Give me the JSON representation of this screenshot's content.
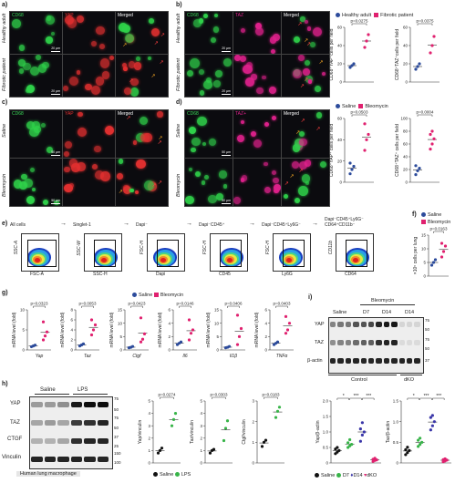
{
  "panels": {
    "a": {
      "label": "a)",
      "rows": [
        "Healthy adult",
        "Fibrotic patient"
      ],
      "cols": [
        "CD68",
        "YAP",
        "Merged"
      ],
      "scalebar": "20 µm"
    },
    "b": {
      "label": "b)",
      "rows": [
        "Healthy adult",
        "Fibrotic patient"
      ],
      "cols": [
        "CD68",
        "TAZ",
        "Merged"
      ],
      "scalebar": "20 µm"
    },
    "c": {
      "label": "c)",
      "rows": [
        "Saline",
        "Bleomycin"
      ],
      "cols": [
        "CD68",
        "YAP",
        "Merged"
      ],
      "scalebar": "50 µm"
    },
    "d": {
      "label": "d)",
      "rows": [
        "Saline",
        "Bleomycin"
      ],
      "cols": [
        "CD68",
        "TAZ+",
        "Merged"
      ],
      "scalebar": "50 µm"
    },
    "e": {
      "label": "e)",
      "gates": [
        {
          "title": "All cells",
          "x": "FSC-A",
          "y": "SSC-A"
        },
        {
          "title": "Singlet-1",
          "x": "SSC-H",
          "y": "SSC-W"
        },
        {
          "title": "Dapi⁻",
          "x": "Dapi",
          "y": "FSC-H"
        },
        {
          "title": "Dapi⁻CD45⁺",
          "x": "CD45",
          "y": "FSC-H"
        },
        {
          "title": "Dapi⁻CD45⁺Ly6G⁻",
          "x": "Ly6G",
          "y": "FSC-H"
        },
        {
          "title": "Dapi⁻CD45⁺Ly6G⁻ CD64⁺CD11b⁻",
          "x": "CD64",
          "y": "CD11b"
        }
      ]
    },
    "f": {
      "label": "f)"
    },
    "g": {
      "label": "g)"
    },
    "h": {
      "label": "h)",
      "blot": {
        "headers": [
          "Saline",
          "LPS"
        ],
        "rows": [
          "YAP",
          "TAZ",
          "CTGF",
          "Vinculin"
        ],
        "mw": [
          "75",
          "50",
          "75",
          "50",
          "37",
          "25",
          "150",
          "100"
        ],
        "footer": "Human lung macrophage"
      }
    },
    "i": {
      "label": "i)",
      "blot": {
        "top": "Bleomycin",
        "cols": [
          "Saline",
          "D7",
          "D14",
          "D14"
        ],
        "rows": [
          "YAP",
          "TAZ",
          "β-actin"
        ],
        "mw": [
          "75",
          "50",
          "75",
          "50",
          "37"
        ],
        "groups": [
          "Control",
          "dKO"
        ]
      }
    }
  },
  "legends": {
    "ab": {
      "healthy": "Healthy adult",
      "fibrotic": "Fibrotic patient"
    },
    "cd": {
      "saline": "Saline",
      "bleo": "Bleomycin"
    },
    "f": {
      "saline": "Saline",
      "bleo": "Bleomycin"
    },
    "g": {
      "saline": "Saline",
      "bleo": "Bleomycin"
    },
    "h": {
      "saline": "Saline",
      "lps": "LPS"
    },
    "i": {
      "saline": "Saline",
      "d7": "D7",
      "d14": "D14",
      "dko": "dKO"
    }
  },
  "colors": {
    "healthy": "#2c4b9b",
    "fibrotic": "#e0216f",
    "saline": "#2c4b9b",
    "bleo": "#e0216f",
    "lps": "#38b449",
    "d7": "#38b449",
    "d14": "#3a36a8",
    "dko": "#e0216f",
    "black": "#111111"
  },
  "chart_data": [
    {
      "id": "ab1",
      "type": "scatter",
      "ylabel": "CD68⁺YAP⁺cells per field",
      "pvalue": "p=0.0275",
      "ylim": [
        0,
        60
      ],
      "yticks": [
        "0",
        "20",
        "40",
        "60"
      ],
      "series": [
        {
          "name": "Healthy adult",
          "values": [
            16,
            18,
            20
          ]
        },
        {
          "name": "Fibrotic patient",
          "values": [
            38,
            45,
            52
          ]
        }
      ]
    },
    {
      "id": "ab2",
      "type": "scatter",
      "ylabel": "CD68⁺TAZ⁺cells per field",
      "pvalue": "p=0.0375",
      "ylim": [
        0,
        60
      ],
      "yticks": [
        "0",
        "20",
        "40",
        "60"
      ],
      "series": [
        {
          "name": "Healthy adult",
          "values": [
            14,
            17,
            20
          ]
        },
        {
          "name": "Fibrotic patient",
          "values": [
            32,
            40,
            50
          ]
        }
      ]
    },
    {
      "id": "cd1",
      "type": "scatter",
      "ylabel": "CD68⁺YAP⁺ cells per field",
      "pvalue": "p=0.0503",
      "ylim": [
        0,
        60
      ],
      "yticks": [
        "0",
        "20",
        "40",
        "60"
      ],
      "series": [
        {
          "name": "Saline",
          "values": [
            8,
            12,
            15,
            18
          ]
        },
        {
          "name": "Bleomycin",
          "values": [
            30,
            40,
            45,
            55
          ]
        }
      ]
    },
    {
      "id": "cd2",
      "type": "scatter",
      "ylabel": "CD68⁺TAZ⁺ cells per field",
      "pvalue": "p=0.0004",
      "ylim": [
        0,
        100
      ],
      "yticks": [
        "0",
        "20",
        "40",
        "60",
        "80",
        "100"
      ],
      "series": [
        {
          "name": "Saline",
          "values": [
            12,
            18,
            22,
            26
          ]
        },
        {
          "name": "Bleomycin",
          "values": [
            52,
            60,
            68,
            75,
            80
          ]
        }
      ]
    },
    {
      "id": "f",
      "type": "scatter",
      "ylabel": "×10⁵ cells per lung",
      "pvalue": "p=0.0163",
      "ylim": [
        0,
        15
      ],
      "yticks": [
        "0",
        "5",
        "10",
        "15"
      ],
      "series": [
        {
          "name": "Saline",
          "values": [
            4,
            5,
            6
          ]
        },
        {
          "name": "Bleomycin",
          "values": [
            7,
            9,
            11,
            12
          ]
        }
      ]
    },
    {
      "id": "g1",
      "type": "scatter",
      "ylabel": "mRNA level (fold)",
      "xlabel": "Yap",
      "pvalue": "p=0.0323",
      "ylim": [
        0,
        10
      ],
      "yticks": [
        "0",
        "5",
        "10"
      ],
      "series": [
        {
          "name": "Saline",
          "values": [
            0.8,
            1,
            1.2
          ]
        },
        {
          "name": "Bleomycin",
          "values": [
            2.5,
            3.5,
            4.5,
            7
          ]
        }
      ]
    },
    {
      "id": "g2",
      "type": "scatter",
      "ylabel": "mRNA level (fold)",
      "xlabel": "Taz",
      "pvalue": "p=0.0053",
      "ylim": [
        0,
        8
      ],
      "yticks": [
        "0",
        "2",
        "4",
        "6",
        "8"
      ],
      "series": [
        {
          "name": "Saline",
          "values": [
            0.8,
            1,
            1.2
          ]
        },
        {
          "name": "Bleomycin",
          "values": [
            3,
            4,
            5,
            6
          ]
        }
      ]
    },
    {
      "id": "g3",
      "type": "scatter",
      "ylabel": "mRNA level (fold)",
      "xlabel": "Ctgf",
      "pvalue": "p=0.0423",
      "ylim": [
        0,
        15
      ],
      "yticks": [
        "0",
        "5",
        "10",
        "15"
      ],
      "series": [
        {
          "name": "Saline",
          "values": [
            0.8,
            1,
            1.3
          ]
        },
        {
          "name": "Bleomycin",
          "values": [
            3,
            4,
            6,
            12
          ]
        }
      ]
    },
    {
      "id": "g4",
      "type": "scatter",
      "ylabel": "mRNA level (fold)",
      "xlabel": "Il6",
      "pvalue": "p=0.0146",
      "ylim": [
        0,
        6
      ],
      "yticks": [
        "0",
        "2",
        "4",
        "6"
      ],
      "series": [
        {
          "name": "Saline",
          "values": [
            0.8,
            1,
            1.2
          ]
        },
        {
          "name": "Bleomycin",
          "values": [
            1.5,
            2.5,
            3,
            4.5
          ]
        }
      ]
    },
    {
      "id": "g5",
      "type": "scatter",
      "ylabel": "mRNA level (fold)",
      "xlabel": "Il1β",
      "pvalue": "p=0.0406",
      "ylim": [
        0,
        15
      ],
      "yticks": [
        "0",
        "5",
        "10",
        "15"
      ],
      "series": [
        {
          "name": "Saline",
          "values": [
            0.8,
            1,
            1.3
          ]
        },
        {
          "name": "Bleomycin",
          "values": [
            2,
            5,
            8,
            13
          ]
        }
      ]
    },
    {
      "id": "g6",
      "type": "scatter",
      "ylabel": "mRNA level (fold)",
      "xlabel": "TNFα",
      "pvalue": "p=0.0403",
      "ylim": [
        0,
        6
      ],
      "yticks": [
        "0",
        "2",
        "4",
        "6"
      ],
      "series": [
        {
          "name": "Saline",
          "values": [
            0.8,
            1,
            1.2
          ]
        },
        {
          "name": "Bleomycin",
          "values": [
            2.5,
            3,
            4,
            5
          ]
        }
      ]
    },
    {
      "id": "h1",
      "type": "scatter",
      "ylabel": "Yap/vinculin",
      "pvalue": "p=0.0274",
      "ylim": [
        0,
        5
      ],
      "yticks": [
        "0",
        "1",
        "2",
        "3",
        "4",
        "5"
      ],
      "series": [
        {
          "name": "Saline",
          "values": [
            0.8,
            1,
            1.2
          ]
        },
        {
          "name": "LPS",
          "values": [
            3,
            3.5,
            4
          ]
        }
      ]
    },
    {
      "id": "h2",
      "type": "scatter",
      "ylabel": "Taz/vinculin",
      "pvalue": "p=0.0303",
      "ylim": [
        0,
        5
      ],
      "yticks": [
        "0",
        "1",
        "2",
        "3",
        "4",
        "5"
      ],
      "series": [
        {
          "name": "Saline",
          "values": [
            0.8,
            1,
            1.1
          ]
        },
        {
          "name": "LPS",
          "values": [
            1.8,
            2.8,
            3.4
          ]
        }
      ]
    },
    {
      "id": "h3",
      "type": "scatter",
      "ylabel": "Ctgf/vinculin",
      "pvalue": "p=0.0183",
      "ylim": [
        0,
        3
      ],
      "yticks": [
        "0",
        "1",
        "2",
        "3"
      ],
      "series": [
        {
          "name": "Saline",
          "values": [
            0.8,
            1,
            1.1
          ]
        },
        {
          "name": "LPS",
          "values": [
            2.2,
            2.5,
            2.7
          ]
        }
      ]
    },
    {
      "id": "i1",
      "type": "scatter",
      "ylabel": "Yap/β-actin",
      "sig": [
        "*",
        "***",
        "***"
      ],
      "ylim": [
        0,
        2
      ],
      "yticks": [
        "0",
        "0.5",
        "1.0",
        "1.5",
        "2.0"
      ],
      "series": [
        {
          "name": "Saline",
          "values": [
            0.3,
            0.35,
            0.4,
            0.45,
            0.5
          ]
        },
        {
          "name": "D7",
          "values": [
            0.5,
            0.55,
            0.6,
            0.65,
            0.75
          ]
        },
        {
          "name": "D14",
          "values": [
            0.7,
            0.9,
            1.0,
            1.1,
            1.3
          ]
        },
        {
          "name": "dKO",
          "values": [
            0.05,
            0.08,
            0.1,
            0.12,
            0.15
          ]
        }
      ]
    },
    {
      "id": "i2",
      "type": "scatter",
      "ylabel": "Taz/β-actin",
      "sig": [
        "*",
        "***",
        "***"
      ],
      "ylim": [
        0,
        1.5
      ],
      "yticks": [
        "0",
        "0.5",
        "1.0",
        "1.5"
      ],
      "series": [
        {
          "name": "Saline",
          "values": [
            0.2,
            0.25,
            0.3,
            0.32,
            0.38
          ]
        },
        {
          "name": "D7",
          "values": [
            0.4,
            0.45,
            0.5,
            0.55,
            0.6
          ]
        },
        {
          "name": "D14",
          "values": [
            0.8,
            0.9,
            1.0,
            1.1,
            1.15
          ]
        },
        {
          "name": "dKO",
          "values": [
            0.03,
            0.05,
            0.07,
            0.08,
            0.1
          ]
        }
      ]
    }
  ]
}
